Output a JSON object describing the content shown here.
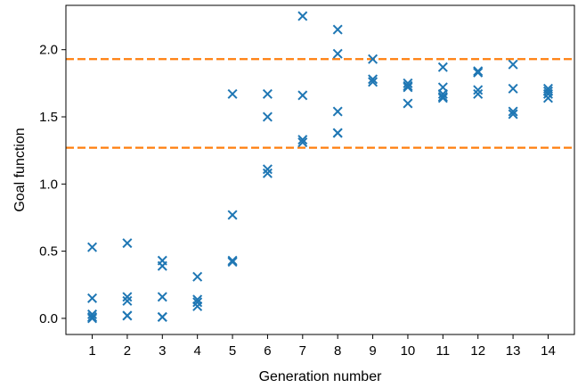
{
  "chart_data": {
    "type": "scatter",
    "title": "",
    "xlabel": "Generation number",
    "ylabel": "Goal function",
    "xlim": [
      0.25,
      14.75
    ],
    "ylim": [
      -0.12,
      2.33
    ],
    "xticks": [
      1,
      2,
      3,
      4,
      5,
      6,
      7,
      8,
      9,
      10,
      11,
      12,
      13,
      14
    ],
    "yticks": [
      0.0,
      0.5,
      1.0,
      1.5,
      2.0
    ],
    "ytick_labels": [
      "0.0",
      "0.5",
      "1.0",
      "1.5",
      "2.0"
    ],
    "grid": false,
    "marker": "x",
    "marker_color": "#1f77b4",
    "line_color": "#ff7f0e",
    "hlines": [
      1.93,
      1.27
    ],
    "hline_style": "dashed",
    "series": [
      {
        "x": [
          1,
          1,
          1,
          1,
          1,
          2,
          2,
          2,
          2,
          2,
          3,
          3,
          3,
          3,
          3,
          4,
          4,
          4,
          4,
          5,
          5,
          5,
          5,
          6,
          6,
          6,
          6,
          7,
          7,
          7,
          7,
          8,
          8,
          8,
          8,
          8,
          9,
          9,
          9,
          10,
          10,
          10,
          10,
          11,
          11,
          11,
          11,
          11,
          12,
          12,
          12,
          12,
          13,
          13,
          13,
          13,
          14,
          14,
          14,
          14
        ],
        "y": [
          0.53,
          0.15,
          0.03,
          0.01,
          0.0,
          0.56,
          0.16,
          0.13,
          0.02,
          0.02,
          0.43,
          0.39,
          0.16,
          0.01,
          0.01,
          0.31,
          0.14,
          0.12,
          0.09,
          1.67,
          0.77,
          0.43,
          0.42,
          1.67,
          1.5,
          1.11,
          1.08,
          2.25,
          1.66,
          1.33,
          1.31,
          2.15,
          1.97,
          1.54,
          1.38,
          1.38,
          1.93,
          1.78,
          1.76,
          1.75,
          1.73,
          1.72,
          1.6,
          1.87,
          1.72,
          1.67,
          1.65,
          1.64,
          1.84,
          1.83,
          1.7,
          1.67,
          1.89,
          1.71,
          1.54,
          1.52,
          1.71,
          1.69,
          1.67,
          1.64
        ]
      }
    ]
  }
}
